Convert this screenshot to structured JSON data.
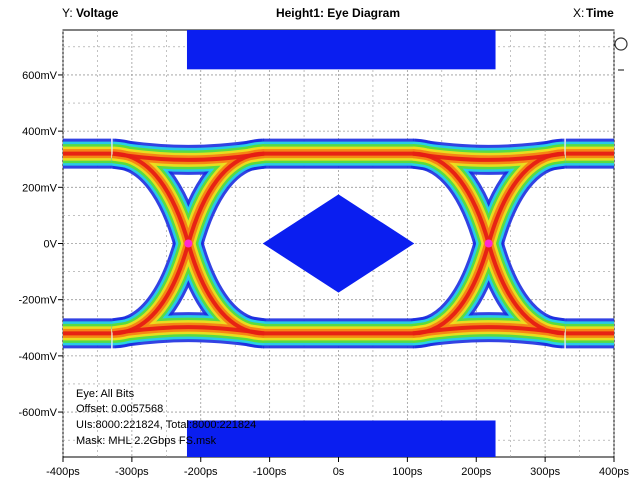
{
  "header": {
    "y_prefix": "Y:",
    "y_name": "Voltage",
    "title": "Height1: Eye Diagram",
    "x_prefix": "X:",
    "x_name": "Time"
  },
  "info": {
    "line1": "Eye: All Bits",
    "line2": "Offset: 0.0057568",
    "line3": "UIs:8000:221824, Total:8000:221824",
    "line4": "Mask: MHL 2.2Gbps FS.msk"
  },
  "colors": {
    "mask": "#0a1ef0",
    "grid": "#9a9a9a",
    "eye_outer": "#1c2ee0",
    "eye_cyan": "#28d2e6",
    "eye_green": "#5adc3c",
    "eye_yellow": "#f0dc1e",
    "eye_orange": "#f58214",
    "eye_red": "#e61e14",
    "crossing": "#ff2ad4"
  },
  "chart_data": {
    "type": "eye-diagram",
    "title": "Height1: Eye Diagram",
    "xlabel": "Time",
    "ylabel": "Voltage",
    "x_unit": "ps",
    "y_unit": "mV",
    "xlim": [
      -400,
      400
    ],
    "ylim": [
      -760,
      760
    ],
    "x_ticks": [
      -400,
      -300,
      -200,
      -100,
      0,
      100,
      200,
      300,
      400
    ],
    "x_tick_labels": [
      "-400ps",
      "-300ps",
      "-200ps",
      "-100ps",
      "0s",
      "100ps",
      "200ps",
      "300ps",
      "400ps"
    ],
    "y_ticks": [
      600,
      400,
      200,
      0,
      -200,
      -400,
      -600
    ],
    "y_tick_labels": [
      "600mV",
      "400mV",
      "200mV",
      "0V",
      "-200mV",
      "-400mV",
      "-600mV"
    ],
    "grid": true,
    "signal": {
      "high_level": 320,
      "low_level": -320,
      "crossing_times": [
        -218,
        218
      ],
      "crossing_level": 0
    },
    "masks": [
      {
        "name": "top",
        "shape": "rectangle",
        "x": [
          -220,
          228
        ],
        "y": [
          620,
          760
        ]
      },
      {
        "name": "center",
        "shape": "diamond",
        "x": [
          -110,
          0,
          110,
          0
        ],
        "y": [
          0,
          175,
          0,
          -175
        ]
      },
      {
        "name": "bottom",
        "shape": "rectangle",
        "x": [
          -220,
          228
        ],
        "y": [
          -760,
          -630
        ]
      }
    ]
  }
}
